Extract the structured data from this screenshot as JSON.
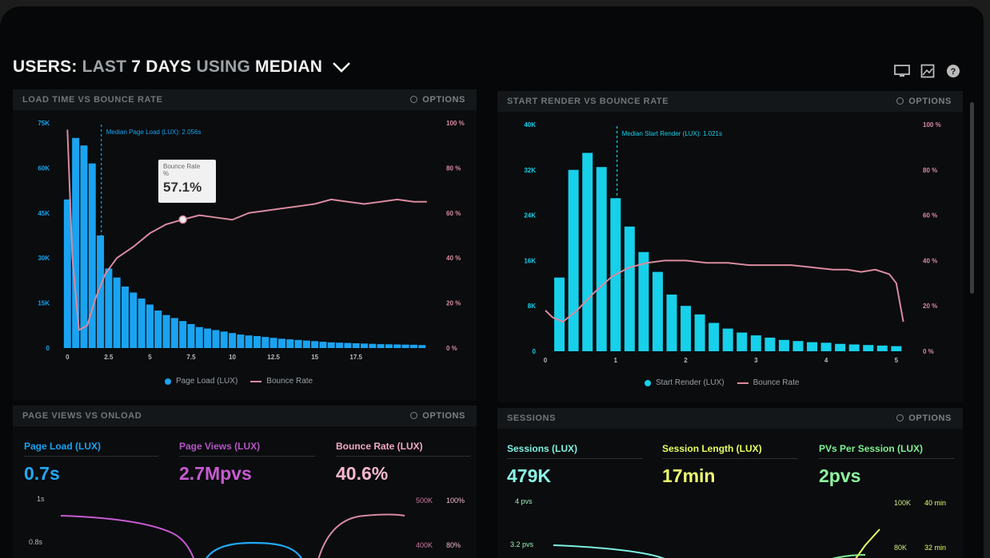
{
  "header": {
    "title_users": "USERS:",
    "title_last": "LAST",
    "title_days": "7 DAYS",
    "title_using": "USING",
    "title_median": "MEDIAN"
  },
  "icons": [
    "monitor-icon",
    "image-icon",
    "help-icon"
  ],
  "colors": {
    "blue_bar": "#1aa3f0",
    "cyan_bar": "#17d0ea",
    "pink_line": "#d98aa0",
    "purple": "#c85ad2",
    "pink_metric": "#f0a8c0",
    "teal": "#7ff0e0",
    "lime": "#e8ff60",
    "green": "#7ef090"
  },
  "panels": {
    "load": {
      "title": "LOAD TIME VS BOUNCE RATE",
      "options": "OPTIONS",
      "median_label": "Median Page Load (LUX): 2.056s",
      "tooltip_label": "Bounce Rate",
      "tooltip_sub": "%",
      "tooltip_value": "57.1%",
      "legend_bar": "Page Load (LUX)",
      "legend_line": "Bounce Rate"
    },
    "render": {
      "title": "START RENDER VS BOUNCE RATE",
      "options": "OPTIONS",
      "median_label": "Median Start Render (LUX): 1.021s",
      "legend_bar": "Start Render (LUX)",
      "legend_line": "Bounce Rate"
    },
    "pageviews": {
      "title": "PAGE VIEWS VS ONLOAD",
      "options": "OPTIONS",
      "metrics": [
        {
          "label": "Page Load (LUX)",
          "value": "0.7s"
        },
        {
          "label": "Page Views (LUX)",
          "value": "2.7Mpvs"
        },
        {
          "label": "Bounce Rate (LUX)",
          "value": "40.6%"
        }
      ],
      "mini": {
        "y1": "1s",
        "y2": "0.8s",
        "r1a": "500K",
        "r1b": "100%",
        "r2a": "400K",
        "r2b": "80%"
      }
    },
    "sessions": {
      "title": "SESSIONS",
      "options": "OPTIONS",
      "metrics": [
        {
          "label": "Sessions (LUX)",
          "value": "479K"
        },
        {
          "label": "Session Length (LUX)",
          "value": "17min"
        },
        {
          "label": "PVs Per Session (LUX)",
          "value": "2pvs"
        }
      ],
      "mini": {
        "y1": "4 pvs",
        "y2": "3.2 pvs",
        "r1a": "100K",
        "r1b": "40 min",
        "r2a": "80K",
        "r2b": "32 min"
      }
    }
  },
  "chart_data": [
    {
      "type": "bar",
      "title": "LOAD TIME VS BOUNCE RATE",
      "x_ticks": [
        "0",
        "2.5",
        "5",
        "7.5",
        "10",
        "12.5",
        "15",
        "17.5"
      ],
      "xlim": [
        -0.5,
        22
      ],
      "y_left_ticks": [
        "0",
        "15K",
        "30K",
        "45K",
        "60K",
        "75K"
      ],
      "ylim_left": [
        0,
        75000
      ],
      "y_right_ticks": [
        "0 %",
        "20 %",
        "40 %",
        "60 %",
        "80 %",
        "100 %"
      ],
      "ylim_right": [
        0,
        100
      ],
      "median_x": 2.056,
      "series": [
        {
          "name": "Page Load (LUX)",
          "kind": "bar",
          "x": [
            0,
            0.5,
            1,
            1.5,
            2,
            2.5,
            3,
            3.5,
            4,
            4.5,
            5,
            5.5,
            6,
            6.5,
            7,
            7.5,
            8,
            8.5,
            9,
            9.5,
            10,
            10.5,
            11,
            11.5,
            12,
            12.5,
            13,
            13.5,
            14,
            14.5,
            15,
            15.5,
            16,
            16.5,
            17,
            17.5,
            18,
            18.5,
            19,
            19.5,
            20,
            20.5,
            21,
            21.5
          ],
          "values": [
            49500,
            70000,
            67500,
            61500,
            37500,
            26500,
            23500,
            20500,
            18500,
            16500,
            14500,
            12500,
            11000,
            10000,
            9000,
            8000,
            7000,
            6500,
            6000,
            5500,
            5000,
            4500,
            4200,
            4000,
            3700,
            3400,
            3100,
            2900,
            2700,
            2500,
            2300,
            2100,
            1900,
            1800,
            1700,
            1600,
            1500,
            1400,
            1300,
            1250,
            1200,
            1150,
            1100,
            1000
          ]
        },
        {
          "name": "Bounce Rate",
          "kind": "line",
          "axis": "right",
          "x": [
            0,
            0.3,
            0.7,
            1.2,
            1.7,
            2.3,
            3,
            4,
            5,
            6,
            7,
            8,
            9,
            10,
            11,
            12,
            13,
            14,
            15,
            16,
            17,
            18,
            19,
            20,
            21,
            21.8
          ],
          "values": [
            97,
            40,
            8,
            10,
            22,
            33,
            40,
            45,
            51,
            55,
            57.1,
            59,
            58,
            57,
            60,
            61,
            62,
            63,
            64,
            66,
            65,
            64,
            65,
            66,
            65,
            65
          ]
        }
      ],
      "tooltip": {
        "x": 7,
        "value": 57.1
      }
    },
    {
      "type": "bar",
      "title": "START RENDER VS BOUNCE RATE",
      "x_ticks": [
        "0",
        "1",
        "2",
        "3",
        "4",
        "5"
      ],
      "xlim": [
        0,
        5.15
      ],
      "y_left_ticks": [
        "0",
        "8K",
        "16K",
        "24K",
        "32K",
        "40K"
      ],
      "ylim_left": [
        0,
        40000
      ],
      "y_right_ticks": [
        "0 %",
        "20 %",
        "40 %",
        "60 %",
        "80 %",
        "100 %"
      ],
      "ylim_right": [
        0,
        100
      ],
      "median_x": 1.021,
      "series": [
        {
          "name": "Start Render (LUX)",
          "kind": "bar",
          "x": [
            0.2,
            0.4,
            0.6,
            0.8,
            1.0,
            1.2,
            1.4,
            1.6,
            1.8,
            2.0,
            2.2,
            2.4,
            2.6,
            2.8,
            3.0,
            3.2,
            3.4,
            3.6,
            3.8,
            4.0,
            4.2,
            4.4,
            4.6,
            4.8,
            5.0
          ],
          "values": [
            13000,
            32000,
            35000,
            32500,
            27000,
            22000,
            17500,
            14000,
            10000,
            8000,
            6500,
            5000,
            4000,
            3300,
            2800,
            2400,
            2000,
            1800,
            1600,
            1500,
            1300,
            1200,
            1100,
            1000,
            900
          ]
        },
        {
          "name": "Bounce Rate",
          "kind": "line",
          "axis": "right",
          "x": [
            0,
            0.1,
            0.25,
            0.45,
            0.7,
            0.95,
            1.2,
            1.45,
            1.7,
            2.0,
            2.3,
            2.6,
            2.9,
            3.2,
            3.5,
            3.8,
            4.1,
            4.3,
            4.5,
            4.7,
            4.9,
            5.0,
            5.1
          ],
          "values": [
            18,
            15,
            13,
            18,
            26,
            33,
            37,
            39,
            40,
            40,
            39,
            39,
            38,
            38,
            38,
            37,
            36,
            36,
            35,
            36,
            34,
            30,
            13
          ]
        }
      ]
    }
  ]
}
